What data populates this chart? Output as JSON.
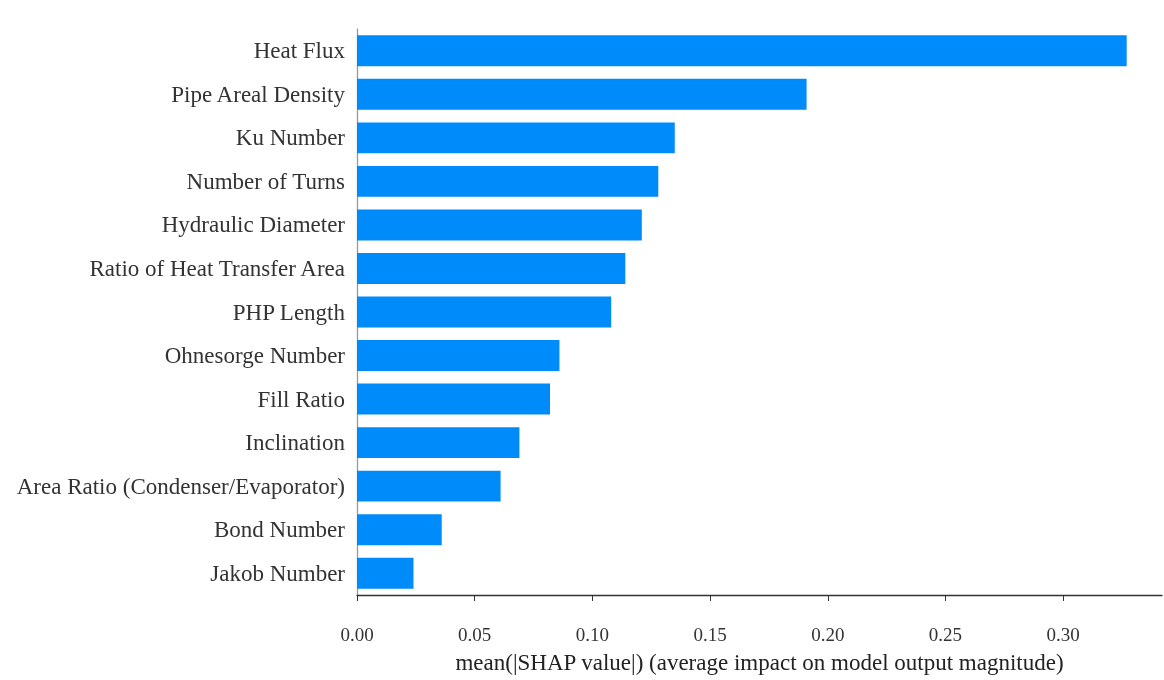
{
  "chart_data": {
    "type": "bar",
    "orientation": "horizontal",
    "categories": [
      "Heat Flux",
      "Pipe Areal Density",
      "Ku Number",
      "Number of Turns",
      "Hydraulic Diameter",
      "Ratio of Heat Transfer Area",
      "PHP Length",
      "Ohnesorge Number",
      "Fill Ratio",
      "Inclination",
      "Area Ratio (Condenser/Evaporator)",
      "Bond Number",
      "Jakob Number"
    ],
    "values": [
      0.327,
      0.191,
      0.135,
      0.128,
      0.121,
      0.114,
      0.108,
      0.086,
      0.082,
      0.069,
      0.061,
      0.036,
      0.024
    ],
    "color": "#008bfb",
    "xlabel": "mean(|SHAP value|) (average impact on model output magnitude)",
    "xlim": [
      0,
      0.342
    ],
    "xticks": [
      {
        "value": 0,
        "label": "0.00"
      },
      0.05,
      {
        "value": 0.1,
        "label": "0.10"
      },
      0.15,
      {
        "value": 0.2,
        "label": "0.20"
      },
      0.25,
      {
        "value": 0.3,
        "label": "0.30"
      }
    ]
  }
}
